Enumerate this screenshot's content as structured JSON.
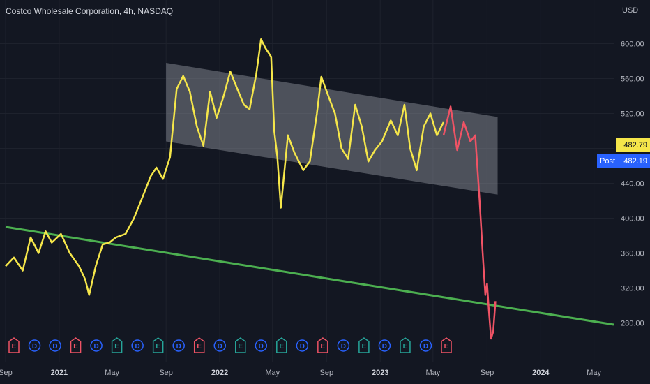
{
  "header": {
    "title": "Costco Wholesale Corporation, 4h, NASDAQ",
    "currency": "USD"
  },
  "price_tags": {
    "last": "482.79",
    "post_label": "Post",
    "post": "482.19"
  },
  "colors": {
    "background": "#131722",
    "price_line": "#f5e64a",
    "post_line": "#f05365",
    "trend_line": "#4caf50",
    "channel": "#9598a1",
    "dividend": "#2962ff",
    "earnings_red": "#f05365",
    "earnings_green": "#26a69a"
  },
  "events": [
    "E",
    "D",
    "D",
    "E",
    "D",
    "E",
    "D",
    "E",
    "D",
    "E",
    "D",
    "E",
    "D",
    "E",
    "D",
    "E",
    "D",
    "E",
    "D",
    "E",
    "D",
    "E"
  ],
  "chart_data": {
    "type": "line",
    "y_axis": {
      "ylim": [
        250,
        630
      ],
      "ticks": [
        "280.00",
        "320.00",
        "360.00",
        "400.00",
        "440.00",
        "480.00",
        "520.00",
        "560.00",
        "600.00"
      ]
    },
    "x_axis": {
      "tick_labels": [
        "Sep",
        "2021",
        "May",
        "Sep",
        "2022",
        "May",
        "Sep",
        "2023",
        "May",
        "Sep",
        "2024",
        "May"
      ],
      "major": [
        "2021",
        "2022",
        "2023",
        "2024"
      ]
    },
    "series": [
      {
        "color": "#f5e64a",
        "x": [
          "2020-09-01",
          "2020-09-20",
          "2020-10-10",
          "2020-10-28",
          "2020-11-15",
          "2020-12-01",
          "2020-12-15",
          "2021-01-05",
          "2021-01-25",
          "2021-02-15",
          "2021-03-01",
          "2021-03-10",
          "2021-03-25",
          "2021-04-10",
          "2021-04-25",
          "2021-05-10",
          "2021-06-01",
          "2021-06-20",
          "2021-07-10",
          "2021-07-28",
          "2021-08-10",
          "2021-08-25",
          "2021-09-10",
          "2021-09-25",
          "2021-10-10",
          "2021-10-25",
          "2021-11-10",
          "2021-11-25",
          "2021-12-10",
          "2021-12-25",
          "2022-01-10",
          "2022-01-25",
          "2022-02-10",
          "2022-02-25",
          "2022-03-10",
          "2022-03-25",
          "2022-04-05",
          "2022-04-15",
          "2022-04-28",
          "2022-05-05",
          "2022-05-12",
          "2022-05-20",
          "2022-06-05",
          "2022-06-20",
          "2022-07-10",
          "2022-07-25",
          "2022-08-10",
          "2022-08-20",
          "2022-09-05",
          "2022-09-20",
          "2022-10-05",
          "2022-10-20",
          "2022-11-05",
          "2022-11-20",
          "2022-12-05",
          "2022-12-20",
          "2023-01-05",
          "2023-01-25",
          "2023-02-10",
          "2023-02-25",
          "2023-03-10",
          "2023-03-25",
          "2023-04-10",
          "2023-04-25",
          "2023-05-10",
          "2023-05-25"
        ],
        "y": [
          345,
          355,
          340,
          378,
          360,
          385,
          372,
          382,
          360,
          345,
          330,
          312,
          345,
          370,
          372,
          378,
          382,
          400,
          425,
          448,
          458,
          445,
          470,
          548,
          563,
          545,
          505,
          483,
          545,
          515,
          540,
          568,
          548,
          530,
          525,
          565,
          605,
          595,
          585,
          500,
          470,
          412,
          495,
          475,
          455,
          465,
          520,
          562,
          540,
          520,
          480,
          468,
          530,
          505,
          465,
          478,
          488,
          512,
          495,
          530,
          480,
          455,
          505,
          520,
          495,
          510
        ]
      },
      {
        "color": "#f05365",
        "x": [
          "2023-05-25",
          "2023-06-10",
          "2023-06-25",
          "2023-07-10",
          "2023-07-25",
          "2023-08-05",
          "2023-08-15",
          "2023-08-22",
          "2023-08-28",
          "2023-09-01",
          "2023-09-05",
          "2023-09-10",
          "2023-09-15",
          "2023-09-20"
        ],
        "y": [
          495,
          528,
          478,
          510,
          488,
          495,
          420,
          360,
          312,
          325,
          295,
          262,
          270,
          305
        ]
      }
    ],
    "trend_line": {
      "color": "#4caf50",
      "from": {
        "x": "2020-09-01",
        "y": 390
      },
      "to": {
        "x": "2024-06-15",
        "y": 278
      }
    },
    "channel": {
      "upper": [
        {
          "x": "2021-09-01",
          "y": 578
        },
        {
          "x": "2023-09-25",
          "y": 516
        }
      ],
      "lower": [
        {
          "x": "2021-09-01",
          "y": 488
        },
        {
          "x": "2023-09-25",
          "y": 427
        }
      ]
    }
  }
}
